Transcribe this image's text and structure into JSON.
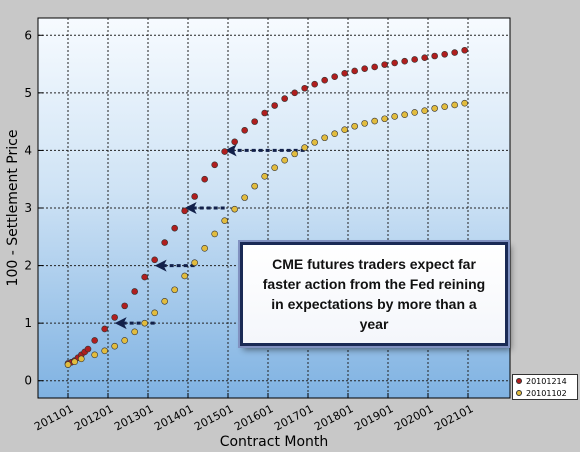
{
  "chart_data": {
    "type": "scatter",
    "xlabel": "Contract Month",
    "ylabel": "100 - Settlement Price",
    "ylim": [
      -0.3,
      6.3
    ],
    "yticks": [
      0,
      1,
      2,
      3,
      4,
      5,
      6
    ],
    "xticks": [
      "201101",
      "201201",
      "201301",
      "201401",
      "201501",
      "201601",
      "201701",
      "201801",
      "201901",
      "202001",
      "202101"
    ],
    "grid": true,
    "legend_position": "bottom-right",
    "series": [
      {
        "name": "20101214",
        "color": "#b01e1e",
        "points": [
          [
            "2011-01",
            0.3
          ],
          [
            "2011-02",
            0.32
          ],
          [
            "2011-03",
            0.35
          ],
          [
            "2011-04",
            0.4
          ],
          [
            "2011-05",
            0.45
          ],
          [
            "2011-06",
            0.5
          ],
          [
            "2011-07",
            0.55
          ],
          [
            "2011-09",
            0.7
          ],
          [
            "2011-12",
            0.9
          ],
          [
            "2012-03",
            1.1
          ],
          [
            "2012-06",
            1.3
          ],
          [
            "2012-09",
            1.55
          ],
          [
            "2012-12",
            1.8
          ],
          [
            "2013-03",
            2.1
          ],
          [
            "2013-06",
            2.4
          ],
          [
            "2013-09",
            2.65
          ],
          [
            "2013-12",
            2.95
          ],
          [
            "2014-03",
            3.2
          ],
          [
            "2014-06",
            3.5
          ],
          [
            "2014-09",
            3.75
          ],
          [
            "2014-12",
            3.98
          ],
          [
            "2015-03",
            4.15
          ],
          [
            "2015-06",
            4.35
          ],
          [
            "2015-09",
            4.5
          ],
          [
            "2015-12",
            4.65
          ],
          [
            "2016-03",
            4.78
          ],
          [
            "2016-06",
            4.9
          ],
          [
            "2016-09",
            5.0
          ],
          [
            "2016-12",
            5.08
          ],
          [
            "2017-03",
            5.15
          ],
          [
            "2017-06",
            5.22
          ],
          [
            "2017-09",
            5.28
          ],
          [
            "2017-12",
            5.34
          ],
          [
            "2018-03",
            5.38
          ],
          [
            "2018-06",
            5.42
          ],
          [
            "2018-09",
            5.45
          ],
          [
            "2018-12",
            5.49
          ],
          [
            "2019-03",
            5.52
          ],
          [
            "2019-06",
            5.55
          ],
          [
            "2019-09",
            5.58
          ],
          [
            "2019-12",
            5.61
          ],
          [
            "2020-03",
            5.64
          ],
          [
            "2020-06",
            5.67
          ],
          [
            "2020-09",
            5.7
          ],
          [
            "2020-12",
            5.74
          ]
        ]
      },
      {
        "name": "20101102",
        "color": "#e2bc3e",
        "points": [
          [
            "2011-01",
            0.28
          ],
          [
            "2011-03",
            0.33
          ],
          [
            "2011-05",
            0.38
          ],
          [
            "2011-09",
            0.45
          ],
          [
            "2011-12",
            0.52
          ],
          [
            "2012-03",
            0.6
          ],
          [
            "2012-06",
            0.7
          ],
          [
            "2012-09",
            0.85
          ],
          [
            "2012-12",
            1.0
          ],
          [
            "2013-03",
            1.18
          ],
          [
            "2013-06",
            1.38
          ],
          [
            "2013-09",
            1.58
          ],
          [
            "2013-12",
            1.82
          ],
          [
            "2014-03",
            2.05
          ],
          [
            "2014-06",
            2.3
          ],
          [
            "2014-09",
            2.55
          ],
          [
            "2014-12",
            2.78
          ],
          [
            "2015-03",
            2.98
          ],
          [
            "2015-06",
            3.18
          ],
          [
            "2015-09",
            3.38
          ],
          [
            "2015-12",
            3.55
          ],
          [
            "2016-03",
            3.7
          ],
          [
            "2016-06",
            3.83
          ],
          [
            "2016-09",
            3.94
          ],
          [
            "2016-12",
            4.05
          ],
          [
            "2017-03",
            4.14
          ],
          [
            "2017-06",
            4.22
          ],
          [
            "2017-09",
            4.29
          ],
          [
            "2017-12",
            4.36
          ],
          [
            "2018-03",
            4.42
          ],
          [
            "2018-06",
            4.47
          ],
          [
            "2018-09",
            4.51
          ],
          [
            "2018-12",
            4.55
          ],
          [
            "2019-03",
            4.59
          ],
          [
            "2019-06",
            4.62
          ],
          [
            "2019-09",
            4.66
          ],
          [
            "2019-12",
            4.69
          ],
          [
            "2020-03",
            4.73
          ],
          [
            "2020-06",
            4.76
          ],
          [
            "2020-09",
            4.79
          ],
          [
            "2020-12",
            4.82
          ]
        ]
      }
    ],
    "arrows": [
      {
        "from": [
          "2013-03",
          1.0
        ],
        "to": [
          "2012-03",
          1.0
        ]
      },
      {
        "from": [
          "2014-03",
          2.0
        ],
        "to": [
          "2013-03",
          2.0
        ]
      },
      {
        "from": [
          "2014-12",
          3.0
        ],
        "to": [
          "2013-12",
          3.0
        ]
      },
      {
        "from": [
          "2016-12",
          4.0
        ],
        "to": [
          "2014-12",
          4.0
        ]
      }
    ],
    "annotation": "CME futures traders expect far faster action from the Fed reining in expectations by more than a year"
  }
}
